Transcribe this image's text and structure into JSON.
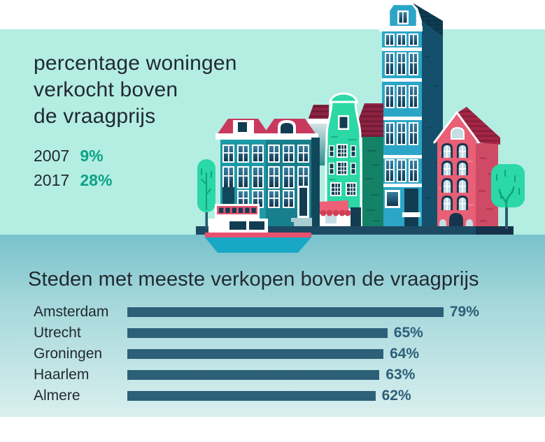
{
  "palette": {
    "mint": "#b4ede2",
    "water_top": "#79c2cc",
    "water_mid": "#a5d8db",
    "water_bottom": "#d9efee",
    "ink": "#212a30",
    "stat_teal": "#0ba287",
    "bar_blue": "#2c5f78",
    "white": "#ffffff",
    "teal_a": "#1d9aa6",
    "teal_b": "#18808c",
    "side_navy": "#11475a",
    "glass_navy": "#123c52",
    "roof_red": "#c9395e",
    "awning_red": "#ef6076",
    "awning_dark": "#d14059",
    "emerald": "#2bd8a6",
    "emerald_dark": "#14b489",
    "wall_green": "#148266",
    "wall_green_dark": "#0c6b52",
    "tile_red": "#8e2242",
    "tile_red_dark": "#6f1a33",
    "blue_facade": "#2ba6c7",
    "blue_shadow": "#14506b",
    "blue_shadow_dark": "#0f4459",
    "roof_navy": "#0e3c53",
    "roof_navy_dark": "#0a2f42",
    "pink": "#e85f76",
    "pink_dark": "#cf4a64",
    "pink_brick": "#b93a56",
    "pink_brick_light": "#f27b8e",
    "crimson": "#a32647",
    "crimson_dark": "#881d3a",
    "arch_navy": "#17344e",
    "pane_pale": "#c6dde4",
    "tree_green": "#2bd8a7",
    "tree_detail": "#12a37e",
    "trunk": "#265d6e",
    "quay": "#1d4a63",
    "quay_dark": "#16324a",
    "boat_red": "#e8526e",
    "boat_teal": "#18a8c5",
    "step_grey": "#a9cdd0"
  },
  "hero": {
    "title_lines": [
      "percentage woningen",
      "verkocht boven",
      "de vraagprijs"
    ],
    "stats": [
      {
        "year": "2007",
        "value": "9%"
      },
      {
        "year": "2017",
        "value": "28%"
      }
    ]
  },
  "cities_section": {
    "heading": "Steden met meeste verkopen boven de vraagprijs"
  },
  "chart_data": [
    {
      "type": "table",
      "title": "percentage woningen verkocht boven de vraagprijs",
      "categories": [
        "2007",
        "2017"
      ],
      "values": [
        9,
        28
      ],
      "unit": "%"
    },
    {
      "type": "bar",
      "orientation": "horizontal",
      "title": "Steden met meeste verkopen boven de vraagprijs",
      "categories": [
        "Amsterdam",
        "Utrecht",
        "Groningen",
        "Haarlem",
        "Almere"
      ],
      "values": [
        79,
        65,
        64,
        63,
        62
      ],
      "unit": "%",
      "xlim": [
        0,
        100
      ],
      "bar_color": "#2c5f78",
      "grid": false,
      "legend": false
    }
  ],
  "illustration": {
    "alt": "Amsterdam canal houses with trees and a boat on the water"
  }
}
